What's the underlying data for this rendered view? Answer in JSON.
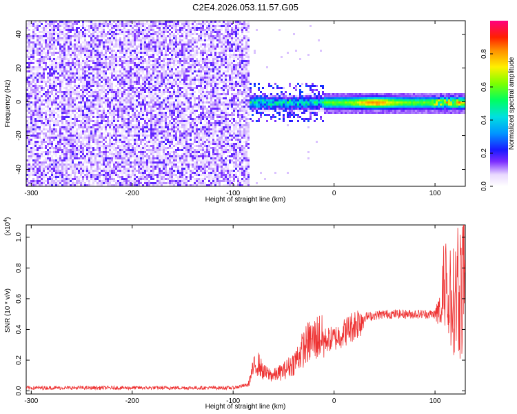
{
  "title": "C2E4.2026.053.11.57.G05",
  "chart_data": [
    {
      "type": "heatmap",
      "xlabel": "Height of straight line (km)",
      "ylabel": "Frequency (Hz)",
      "xlim": [
        -305,
        130
      ],
      "ylim": [
        -50,
        48
      ],
      "x_ticks": [
        -300,
        -200,
        -100,
        0,
        100
      ],
      "y_ticks": [
        -40,
        -20,
        0,
        20,
        40
      ],
      "colorbar": {
        "label": "Normalized spectral amplitude",
        "range": [
          0,
          1
        ],
        "ticks": [
          "0.0",
          "0.2",
          "0.4",
          "0.6",
          "0.8"
        ]
      }
    },
    {
      "type": "line",
      "xlabel": "Height of straight line (km)",
      "ylabel": "SNR (10 * v/v)",
      "y_multiplier": "(x10^4)",
      "xlim": [
        -305,
        130
      ],
      "ylim": [
        -0.02,
        1.08
      ],
      "x_ticks": [
        -300,
        -200,
        -100,
        0,
        100
      ],
      "y_ticks": [
        "0.0",
        "0.2",
        "0.4",
        "0.6",
        "0.8",
        "1.0"
      ],
      "series_color": "#ee3333",
      "series": [
        {
          "x": [
            -305,
            -280,
            -250,
            -200,
            -150,
            -100,
            -85,
            -80,
            -75,
            -70,
            -60,
            -50,
            -40,
            -30,
            -25,
            -20,
            -15,
            -10,
            0,
            10,
            20,
            30,
            50,
            80,
            100,
            110,
            120,
            125,
            130
          ],
          "values": [
            0.02,
            0.02,
            0.02,
            0.02,
            0.02,
            0.02,
            0.04,
            0.15,
            0.18,
            0.12,
            0.1,
            0.13,
            0.18,
            0.28,
            0.32,
            0.33,
            0.36,
            0.33,
            0.34,
            0.38,
            0.43,
            0.48,
            0.5,
            0.5,
            0.5,
            0.53,
            0.6,
            0.65,
            0.7
          ]
        }
      ]
    }
  ]
}
